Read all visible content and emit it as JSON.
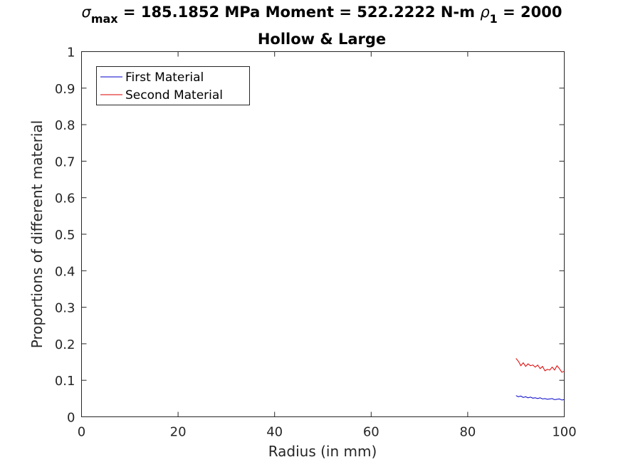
{
  "chart_data": {
    "type": "line",
    "title_line1": {
      "prefix_symbol": "σ",
      "prefix_sub": "max",
      "middle": " = 185.1852 MPa Moment = 522.2222 N-m  ",
      "rho_symbol": "ρ",
      "rho_sub": "1",
      "suffix": " = 2000"
    },
    "title_line2": "Hollow & Large",
    "xlabel": "Radius (in mm)",
    "ylabel": "Proportions of different material",
    "xlim": [
      0,
      100
    ],
    "ylim": [
      0,
      1
    ],
    "xticks": [
      0,
      20,
      40,
      60,
      80,
      100
    ],
    "yticks": [
      0,
      0.1,
      0.2,
      0.3,
      0.4,
      0.5,
      0.6,
      0.7,
      0.8,
      0.9,
      1
    ],
    "legend_position": "top-left",
    "series": [
      {
        "name": "First Material",
        "color": "#0000cc",
        "x": [
          90.0,
          90.5,
          91.0,
          91.5,
          92.0,
          92.5,
          93.0,
          93.5,
          94.0,
          94.5,
          95.0,
          95.5,
          96.0,
          96.5,
          97.0,
          97.5,
          98.0,
          98.5,
          99.0,
          99.5,
          100.0
        ],
        "y": [
          0.058,
          0.055,
          0.057,
          0.053,
          0.055,
          0.052,
          0.054,
          0.051,
          0.052,
          0.05,
          0.052,
          0.049,
          0.05,
          0.048,
          0.049,
          0.05,
          0.047,
          0.048,
          0.049,
          0.046,
          0.047
        ]
      },
      {
        "name": "Second Material",
        "color": "#dd0000",
        "x": [
          90.0,
          90.5,
          91.0,
          91.5,
          92.0,
          92.5,
          93.0,
          93.5,
          94.0,
          94.5,
          95.0,
          95.5,
          96.0,
          96.5,
          97.0,
          97.5,
          98.0,
          98.5,
          99.0,
          99.5,
          100.0
        ],
        "y": [
          0.16,
          0.152,
          0.14,
          0.148,
          0.138,
          0.145,
          0.14,
          0.142,
          0.136,
          0.142,
          0.132,
          0.138,
          0.126,
          0.13,
          0.128,
          0.136,
          0.128,
          0.14,
          0.132,
          0.122,
          0.125
        ]
      }
    ]
  }
}
